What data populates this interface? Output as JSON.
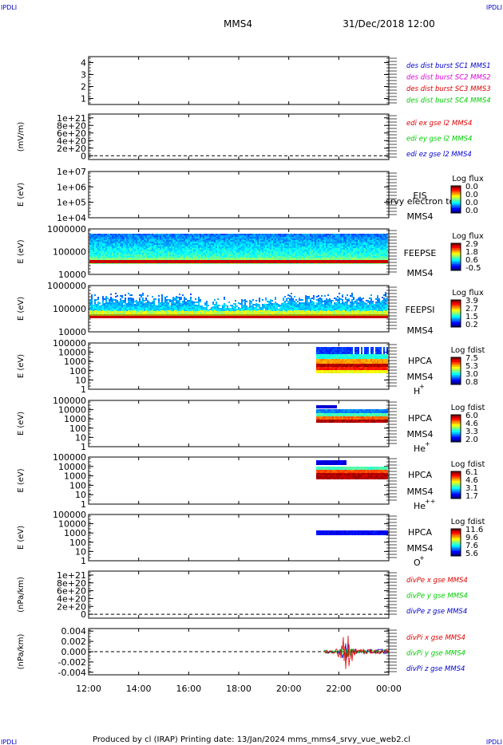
{
  "header": {
    "corner_tl": "IPDLI",
    "corner_tr": "IPDLI",
    "corner_bl": "IPDLI",
    "corner_br": "IPDLI",
    "title": "MMS4",
    "datetime": "31/Dec/2018 12:00"
  },
  "footer": "Produced by cl (IRAP)   Printing date: 13/Jan/2024   mms_mms4_srvy_vue_web2.cl",
  "x_axis": {
    "ticks": [
      "12:00",
      "14:00",
      "16:00",
      "18:00",
      "20:00",
      "22:00",
      "00:00"
    ],
    "range_hours": [
      12,
      24
    ]
  },
  "colors": {
    "red": "#dd0000",
    "green": "#00cc00",
    "blue": "#0000cc",
    "magenta": "#dd00dd"
  },
  "chart_data": [
    {
      "id": "des",
      "type": "line",
      "yticks": [
        "4",
        "3",
        "2",
        "1"
      ],
      "ylim": [
        0.5,
        4.5
      ],
      "ylabel": "",
      "legend": [
        {
          "text": "des dist burst SC1 MMS1",
          "color": "#0000cc"
        },
        {
          "text": "des dist burst SC2 MMS2",
          "color": "#dd00dd"
        },
        {
          "text": "des dist burst SC3 MMS3",
          "color": "#dd0000"
        },
        {
          "text": "des dist burst SC4 MMS4",
          "color": "#00cc00"
        }
      ]
    },
    {
      "id": "edi",
      "type": "line",
      "yticks": [
        "1e+21",
        "8e+20",
        "6e+20",
        "4e+20",
        "2e+20",
        "0"
      ],
      "ylim": [
        -1e+20,
        1.1e+21
      ],
      "ylabel": "(mV/m)",
      "legend": [
        {
          "text": "edi ex gse l2 MMS4",
          "color": "#dd0000"
        },
        {
          "text": "edi ey gse l2 MMS4",
          "color": "#00cc00"
        },
        {
          "text": "edi ez gse l2 MMS4",
          "color": "#0000cc"
        }
      ]
    },
    {
      "id": "eis",
      "type": "heatmap",
      "yticks": [
        "1e+07",
        "1e+06",
        "1e+05",
        "1e+04"
      ],
      "ylabel": "E (eV)",
      "labels": [
        "EIS",
        "MMS4"
      ],
      "overlay": "srvy electron to",
      "colorbar": {
        "title": "Log flux",
        "ticks": [
          "0.0",
          "0.0",
          "0.0",
          "0.0"
        ]
      }
    },
    {
      "id": "feeps_e",
      "type": "heatmap",
      "yticks": [
        "1000000",
        "100000",
        "10000"
      ],
      "ylabel": "E (eV)",
      "labels": [
        "FEEPSE",
        "MMS4"
      ],
      "colorbar": {
        "title": "Log flux",
        "ticks": [
          "2.9",
          "1.8",
          "0.6",
          "-0.5"
        ]
      }
    },
    {
      "id": "feeps_i",
      "type": "heatmap",
      "yticks": [
        "1000000",
        "100000",
        "10000"
      ],
      "ylabel": "E (eV)",
      "labels": [
        "FEEPSI",
        "MMS4"
      ],
      "colorbar": {
        "title": "Log flux",
        "ticks": [
          "3.9",
          "2.7",
          "1.5",
          "0.2"
        ]
      }
    },
    {
      "id": "hpca_h",
      "type": "heatmap",
      "yticks": [
        "100000",
        "10000",
        "1000",
        "100",
        "10",
        "1"
      ],
      "ylabel": "E (eV)",
      "labels": [
        "HPCA",
        "MMS4"
      ],
      "species": "H",
      "species_sup": "+",
      "colorbar": {
        "title": "Log fdist",
        "ticks": [
          "7.5",
          "5.3",
          "3.0",
          "0.8"
        ]
      }
    },
    {
      "id": "hpca_he",
      "type": "heatmap",
      "yticks": [
        "100000",
        "10000",
        "1000",
        "100",
        "10",
        "1"
      ],
      "ylabel": "E (eV)",
      "labels": [
        "HPCA",
        "MMS4"
      ],
      "species": "He",
      "species_sup": "+",
      "colorbar": {
        "title": "Log fdist",
        "ticks": [
          "6.0",
          "4.6",
          "3.3",
          "2.0"
        ]
      }
    },
    {
      "id": "hpca_hepp",
      "type": "heatmap",
      "yticks": [
        "100000",
        "10000",
        "1000",
        "100",
        "10",
        "1"
      ],
      "ylabel": "E (eV)",
      "labels": [
        "HPCA",
        "MMS4"
      ],
      "species": "He",
      "species_sup": "++",
      "colorbar": {
        "title": "Log fdist",
        "ticks": [
          "6.1",
          "4.6",
          "3.1",
          "1.7"
        ]
      }
    },
    {
      "id": "hpca_o",
      "type": "heatmap",
      "yticks": [
        "100000",
        "10000",
        "1000",
        "100",
        "10",
        "1"
      ],
      "ylabel": "E (eV)",
      "labels": [
        "HPCA",
        "MMS4"
      ],
      "species": "O",
      "species_sup": "+",
      "colorbar": {
        "title": "Log fdist",
        "ticks": [
          "11.6",
          "9.6",
          "7.6",
          "5.6"
        ]
      }
    },
    {
      "id": "divpe",
      "type": "line",
      "yticks": [
        "1e+21",
        "8e+20",
        "6e+20",
        "4e+20",
        "2e+20",
        "0"
      ],
      "ylim": [
        -1e+20,
        1.1e+21
      ],
      "ylabel": "(nPa/km)",
      "legend": [
        {
          "text": "divPe x gse MMS4",
          "color": "#dd0000"
        },
        {
          "text": "divPe y gse MMS4",
          "color": "#00cc00"
        },
        {
          "text": "divPe z gse MMS4",
          "color": "#0000cc"
        }
      ]
    },
    {
      "id": "divpi",
      "type": "line",
      "yticks": [
        "0.004",
        "0.002",
        "0.000",
        "-0.002",
        "-0.004"
      ],
      "ylim": [
        -0.0045,
        0.0045
      ],
      "ylabel": "(nPa/km)",
      "legend": [
        {
          "text": "divPi x gse MMS4",
          "color": "#dd0000"
        },
        {
          "text": "divPi y gse MMS4",
          "color": "#00cc00"
        },
        {
          "text": "divPi z gse MMS4",
          "color": "#0000cc"
        }
      ]
    }
  ]
}
